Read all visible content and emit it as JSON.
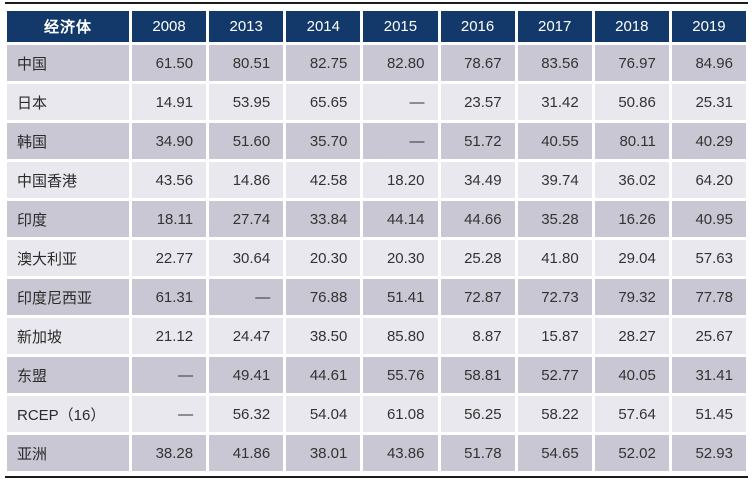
{
  "chart_data": {
    "type": "table",
    "title": "",
    "columns": [
      "经济体",
      "2008",
      "2013",
      "2014",
      "2015",
      "2016",
      "2017",
      "2018",
      "2019"
    ],
    "rows": [
      [
        "中国",
        "61.50",
        "80.51",
        "82.75",
        "82.80",
        "78.67",
        "83.56",
        "76.97",
        "84.96"
      ],
      [
        "日本",
        "14.91",
        "53.95",
        "65.65",
        "—",
        "23.57",
        "31.42",
        "50.86",
        "25.31"
      ],
      [
        "韩国",
        "34.90",
        "51.60",
        "35.70",
        "—",
        "51.72",
        "40.55",
        "80.11",
        "40.29"
      ],
      [
        "中国香港",
        "43.56",
        "14.86",
        "42.58",
        "18.20",
        "34.49",
        "39.74",
        "36.02",
        "64.20"
      ],
      [
        "印度",
        "18.11",
        "27.74",
        "33.84",
        "44.14",
        "44.66",
        "35.28",
        "16.26",
        "40.95"
      ],
      [
        "澳大利亚",
        "22.77",
        "30.64",
        "20.30",
        "20.30",
        "25.28",
        "41.80",
        "29.04",
        "57.63"
      ],
      [
        "印度尼西亚",
        "61.31",
        "—",
        "76.88",
        "51.41",
        "72.87",
        "72.73",
        "79.32",
        "77.78"
      ],
      [
        "新加坡",
        "21.12",
        "24.47",
        "38.50",
        "85.80",
        "8.87",
        "15.87",
        "28.27",
        "25.67"
      ],
      [
        "东盟",
        "—",
        "49.41",
        "44.61",
        "55.76",
        "58.81",
        "52.77",
        "40.05",
        "31.41"
      ],
      [
        "RCEP（16）",
        "—",
        "56.32",
        "54.04",
        "61.08",
        "56.25",
        "58.22",
        "57.64",
        "51.45"
      ],
      [
        "亚洲",
        "38.28",
        "41.86",
        "38.01",
        "43.86",
        "51.78",
        "54.65",
        "52.02",
        "52.93"
      ]
    ],
    "layout": {
      "legend": "none",
      "grid": "white cell gaps, dark horizontal rules above and below table",
      "row_striping": "odd rows darker"
    }
  },
  "colors": {
    "header_bg": "#12396a",
    "header_text": "#ffffff",
    "row_dark": "#c9c7d3",
    "row_light": "#e9e8ee",
    "rule": "#1c1c1c",
    "body_text": "#333333",
    "background": "#ffffff"
  }
}
